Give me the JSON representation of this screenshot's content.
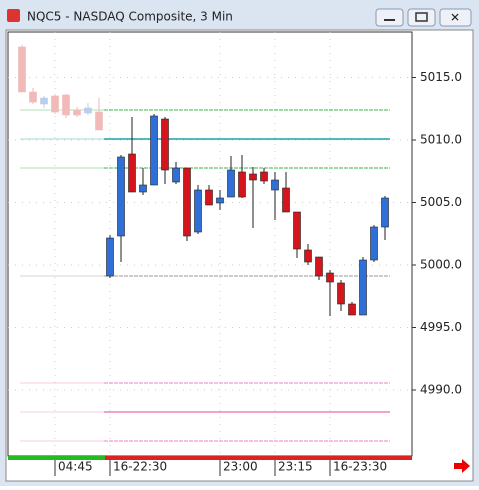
{
  "window_title": "NQC5 - NASDAQ Composite, 3 Min",
  "chart_data": {
    "type": "candlestick",
    "categories": [
      null,
      null,
      null,
      "04:45",
      null,
      null,
      null,
      null,
      "16-22:30",
      null,
      null,
      null,
      null,
      null,
      null,
      null,
      null,
      null,
      "23:00",
      null,
      null,
      null,
      null,
      "23:15",
      null,
      null,
      null,
      null,
      "16-23:30",
      null,
      null,
      null,
      null,
      null
    ],
    "open": [
      5017.44,
      5013.84,
      5012.88,
      5013.52,
      5013.6,
      5012.4,
      5012.16,
      5012.24,
      4999.12,
      5002.32,
      5008.88,
      5005.84,
      5006.4,
      5011.68,
      5006.64,
      5007.76,
      5002.64,
      5006.0,
      5004.96,
      5005.44,
      5007.44,
      5007.28,
      5007.44,
      5006.0,
      5006.16,
      5004.24,
      5001.2,
      5000.64,
      4999.36,
      4998.56,
      4996.88,
      4996.0,
      5000.4,
      5003.04
    ],
    "high": [
      5017.6,
      5014.16,
      5013.52,
      5013.68,
      5013.68,
      5012.64,
      5012.96,
      5013.36,
      5002.4,
      5008.8,
      5011.84,
      5007.76,
      5012.08,
      5011.84,
      5008.24,
      5007.76,
      5006.4,
      5006.4,
      5006.0,
      5008.72,
      5008.8,
      5007.84,
      5007.76,
      5007.44,
      5007.44,
      5004.24,
      5001.68,
      5000.64,
      4999.6,
      4998.8,
      4997.04,
      5000.64,
      5003.2,
      5005.52
    ],
    "low": [
      5013.84,
      5012.88,
      5012.56,
      5012.08,
      5011.76,
      5011.84,
      5012.0,
      5010.8,
      4998.96,
      5000.24,
      5005.84,
      5005.6,
      5006.4,
      5006.48,
      5006.48,
      5001.92,
      5002.48,
      5004.8,
      5004.4,
      5005.44,
      5005.36,
      5002.96,
      5006.48,
      5003.6,
      5004.24,
      5000.56,
      5000.0,
      4998.8,
      4995.92,
      4996.32,
      4996.0,
      4996.0,
      5000.24,
      5002.0
    ],
    "close": [
      5013.84,
      5013.04,
      5013.36,
      5012.24,
      5012.0,
      5012.0,
      5012.56,
      5010.8,
      5002.16,
      5008.64,
      5005.84,
      5006.4,
      5011.92,
      5007.6,
      5007.76,
      5002.32,
      5006.0,
      5004.8,
      5005.36,
      5007.6,
      5005.44,
      5006.8,
      5006.72,
      5006.8,
      5004.24,
      5001.28,
      5000.24,
      4999.12,
      4998.64,
      4996.88,
      4996.0,
      5000.4,
      5003.04,
      5005.36
    ],
    "up_color": "#2f6fd8",
    "down_color": "#d4161c",
    "dimmed_up_color": "#b9cdef",
    "dimmed_down_color": "#f2b9b9",
    "dimmed_bars": 8,
    "levels": [
      {
        "value": 5012.4,
        "color": "#3cb44b",
        "style": "dashed"
      },
      {
        "value": 5010.08,
        "color": "#1aa3a8",
        "style": "solid"
      },
      {
        "value": 5007.76,
        "color": "#3cb44b",
        "style": "dashed"
      },
      {
        "value": 4999.12,
        "color": "#999999",
        "style": "dashed"
      },
      {
        "value": 4990.56,
        "color": "#f080c0",
        "style": "dashed"
      },
      {
        "value": 4988.24,
        "color": "#f080c0",
        "style": "solid"
      },
      {
        "value": 4985.92,
        "color": "#f080c0",
        "style": "dashed"
      }
    ],
    "ylim": [
      4984.72,
      5018.64
    ],
    "yticks": [
      {
        "value": 4990,
        "label": "4990.0"
      },
      {
        "value": 4995,
        "label": "4995.0"
      },
      {
        "value": 5000,
        "label": "5000.0"
      },
      {
        "value": 5005,
        "label": "5005.0"
      },
      {
        "value": 5010,
        "label": "5010.0"
      },
      {
        "value": 5015,
        "label": "5015.0"
      }
    ],
    "grid": true
  }
}
